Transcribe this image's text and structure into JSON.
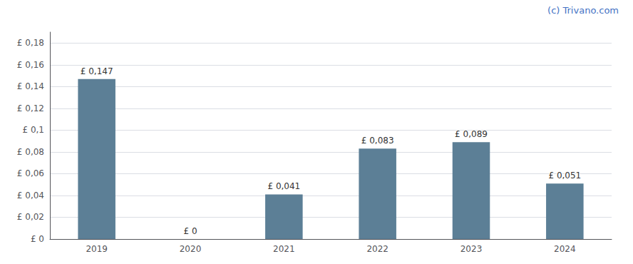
{
  "chart_data": {
    "type": "bar",
    "categories": [
      "2019",
      "2020",
      "2021",
      "2022",
      "2023",
      "2024"
    ],
    "values": [
      0.147,
      0.0,
      0.041,
      0.083,
      0.089,
      0.051
    ],
    "value_labels": [
      "£ 0,147",
      "£ 0",
      "£ 0,041",
      "£ 0,083",
      "£ 0,089",
      "£ 0,051"
    ],
    "data_labels": true,
    "color": "#5c7f96",
    "ylim": [
      0,
      0.19
    ],
    "yticks": [
      {
        "value": 0,
        "label": "£ 0"
      },
      {
        "value": 0.02,
        "label": "£ 0,02"
      },
      {
        "value": 0.04,
        "label": "£ 0,04"
      },
      {
        "value": 0.06,
        "label": "£ 0,06"
      },
      {
        "value": 0.08,
        "label": "£ 0,08"
      },
      {
        "value": 0.1,
        "label": "£ 0,1"
      },
      {
        "value": 0.12,
        "label": "£ 0,12"
      },
      {
        "value": 0.14,
        "label": "£ 0,14"
      },
      {
        "value": 0.16,
        "label": "£ 0,16"
      },
      {
        "value": 0.18,
        "label": "£ 0,18"
      }
    ],
    "grid": true,
    "annotations": [
      "(c) Trivano.com"
    ]
  }
}
